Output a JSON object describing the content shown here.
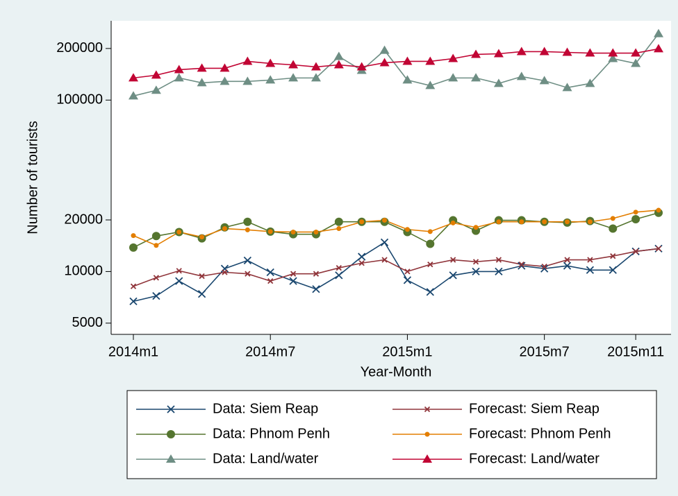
{
  "chart_data": {
    "type": "line",
    "y_label": "Number of tourists",
    "x_label": "Year-Month",
    "log_scale": true,
    "grid": false,
    "legend_position": "bottom",
    "categories": [
      "2014m1",
      null,
      null,
      null,
      null,
      null,
      "2014m7",
      null,
      null,
      null,
      null,
      null,
      "2015m1",
      null,
      null,
      null,
      null,
      null,
      "2015m7",
      null,
      null,
      null,
      "2015m11",
      null
    ],
    "ylim": [
      4300,
      290000
    ],
    "yticks": [
      5000,
      10000,
      20000,
      100000,
      200000
    ],
    "series": [
      {
        "name": "Data: Siem Reap",
        "color": "#1a476f",
        "marker": "x",
        "values": [
          6700,
          7200,
          8800,
          7400,
          10400,
          11600,
          9900,
          8800,
          7900,
          9500,
          12200,
          14800,
          8900,
          7600,
          9500,
          10000,
          10000,
          10800,
          10400,
          10800,
          10200,
          10200,
          13100,
          13600
        ]
      },
      {
        "name": "Forecast: Siem Reap",
        "color": "#90353b",
        "marker": "small-x",
        "values": [
          8200,
          9200,
          10100,
          9400,
          9900,
          9700,
          8800,
          9700,
          9700,
          10500,
          11200,
          11700,
          10000,
          11000,
          11700,
          11400,
          11700,
          11000,
          10700,
          11700,
          11700,
          12300,
          13100,
          13600
        ]
      },
      {
        "name": "Data: Phnom Penh",
        "color": "#55752f",
        "marker": "circle",
        "values": [
          13800,
          16100,
          17000,
          15600,
          18100,
          19500,
          17100,
          16500,
          16500,
          19500,
          19500,
          19500,
          17000,
          14500,
          19900,
          17300,
          19900,
          19900,
          19500,
          19300,
          19700,
          17800,
          20200,
          22000
        ]
      },
      {
        "name": "Forecast: Phnom Penh",
        "color": "#e37e00",
        "marker": "dot",
        "values": [
          16200,
          14200,
          17000,
          15900,
          17800,
          17500,
          17100,
          17000,
          17000,
          17800,
          19500,
          19900,
          17600,
          17100,
          19200,
          18100,
          19500,
          19500,
          19500,
          19500,
          19500,
          20400,
          22200,
          22800
        ]
      },
      {
        "name": "Data: Land/water",
        "color": "#6e8e84",
        "marker": "triangle",
        "values": [
          105700,
          113900,
          134600,
          126100,
          128500,
          128500,
          130900,
          134600,
          134600,
          179500,
          149000,
          195000,
          130900,
          121500,
          134600,
          134600,
          125000,
          137100,
          129700,
          118200,
          125000,
          174500,
          163600,
          243900
        ]
      },
      {
        "name": "Forecast: Land/water",
        "color": "#c10534",
        "marker": "triangle",
        "values": [
          134600,
          139700,
          150400,
          153300,
          153300,
          168200,
          163600,
          160500,
          156100,
          160500,
          156100,
          165100,
          168200,
          168200,
          174500,
          184600,
          186300,
          191600,
          191600,
          189800,
          188000,
          188000,
          188000,
          199000
        ]
      }
    ]
  }
}
